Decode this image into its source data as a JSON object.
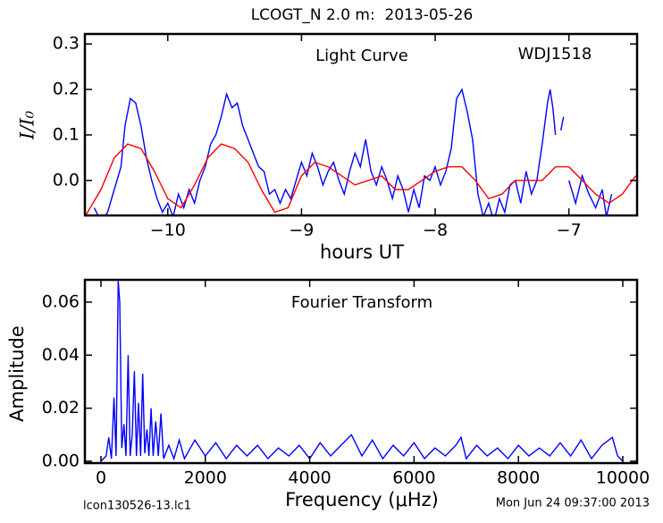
{
  "title": "LCOGT_N 2.0 m:  2013-05-26",
  "footer": {
    "left": "lcon130526-13.lc1",
    "right": "Mon Jun 24 09:37:00 2013"
  },
  "chart_data": [
    {
      "type": "line",
      "title": "Light Curve",
      "annotation": "WDJ1518",
      "x_label": "hours UT",
      "y_label": "I/I₀",
      "xlim": [
        -10.62,
        -6.49
      ],
      "ylim": [
        -0.077,
        0.322
      ],
      "xticks": [
        {
          "value": -10,
          "label": "−10"
        },
        {
          "value": -9,
          "label": "−9"
        },
        {
          "value": -8,
          "label": "−8"
        },
        {
          "value": -7,
          "label": "−7"
        }
      ],
      "yticks": [
        {
          "value": 0,
          "label": "0.0"
        },
        0.1,
        0.2,
        0.3
      ],
      "series": [
        {
          "color": "#0000ff",
          "x": [
            -10.55,
            -10.5,
            -10.45,
            -10.4,
            -10.35,
            -10.32,
            -10.28,
            -10.24,
            -10.2,
            -10.16,
            -10.12,
            -10.08,
            -10.04,
            -10.0,
            -9.96,
            -9.92,
            -9.88,
            -9.84,
            -9.8,
            -9.76,
            -9.72,
            -9.68,
            -9.64,
            -9.6,
            -9.56,
            -9.52,
            -9.48,
            -9.44,
            -9.4,
            -9.36,
            -9.32,
            -9.28,
            -9.24,
            -9.2,
            -9.16,
            -9.12,
            -9.08,
            -9.04,
            -9.0,
            -8.96,
            -8.92,
            -8.88,
            -8.84,
            -8.8,
            -8.76,
            -8.72,
            -8.68,
            -8.64,
            -8.6,
            -8.56,
            -8.52,
            -8.48,
            -8.44,
            -8.4,
            -8.36,
            -8.32,
            -8.28,
            -8.24,
            -8.2,
            -8.16,
            -8.12,
            -8.08,
            -8.04,
            -8.0,
            -7.96,
            -7.92,
            -7.88,
            -7.84,
            -7.8,
            -7.76,
            -7.72,
            -7.68,
            -7.64,
            -7.6,
            -7.56,
            -7.52,
            -7.48,
            -7.44,
            -7.4,
            -7.36,
            -7.32,
            -7.28,
            -7.24,
            -7.2,
            -7.16,
            -7.14,
            -7.12,
            -7.1,
            -7.08,
            -7.06,
            -7.04,
            -7.02,
            -7.0,
            -6.95,
            -6.9,
            -6.85,
            -6.8,
            -6.75,
            -6.72,
            -6.68
          ],
          "values": [
            -0.06,
            -0.09,
            -0.07,
            -0.02,
            0.03,
            0.12,
            0.18,
            0.17,
            0.12,
            0.05,
            0.0,
            -0.04,
            -0.07,
            -0.05,
            -0.08,
            -0.03,
            -0.06,
            -0.02,
            -0.05,
            0.0,
            0.03,
            0.08,
            0.1,
            0.14,
            0.19,
            0.16,
            0.17,
            0.12,
            0.09,
            0.06,
            0.03,
            0.02,
            -0.03,
            -0.02,
            -0.05,
            -0.02,
            -0.04,
            0.0,
            0.04,
            0.01,
            0.06,
            0.03,
            -0.01,
            0.02,
            0.04,
            0.0,
            -0.03,
            0.02,
            0.06,
            0.03,
            0.09,
            0.02,
            -0.01,
            0.03,
            0.0,
            -0.04,
            0.01,
            -0.02,
            -0.07,
            -0.02,
            -0.06,
            0.01,
            0.0,
            0.03,
            -0.01,
            0.02,
            0.07,
            0.18,
            0.2,
            0.15,
            0.09,
            -0.03,
            -0.08,
            -0.05,
            -0.09,
            -0.04,
            -0.07,
            -0.01,
            0.0,
            -0.05,
            0.02,
            -0.03,
            0.0,
            0.08,
            0.17,
            0.2,
            0.16,
            0.1,
            null,
            0.11,
            0.14,
            null,
            0.0,
            -0.05,
            0.01,
            -0.03,
            -0.06,
            -0.02,
            -0.08,
            -0.03
          ]
        },
        {
          "color": "#ff0000",
          "x": [
            -10.62,
            -10.5,
            -10.4,
            -10.3,
            -10.2,
            -10.1,
            -10.0,
            -9.9,
            -9.8,
            -9.7,
            -9.6,
            -9.5,
            -9.4,
            -9.3,
            -9.2,
            -9.1,
            -9.0,
            -8.9,
            -8.8,
            -8.7,
            -8.6,
            -8.5,
            -8.4,
            -8.3,
            -8.2,
            -8.1,
            -8.0,
            -7.9,
            -7.8,
            -7.7,
            -7.6,
            -7.5,
            -7.4,
            -7.3,
            -7.2,
            -7.1,
            -7.0,
            -6.9,
            -6.8,
            -6.7,
            -6.6,
            -6.5
          ],
          "values": [
            -0.08,
            -0.02,
            0.05,
            0.08,
            0.07,
            0.02,
            -0.04,
            -0.06,
            -0.01,
            0.05,
            0.08,
            0.07,
            0.04,
            -0.02,
            -0.07,
            -0.06,
            0.01,
            0.04,
            0.03,
            0.01,
            -0.01,
            0.0,
            0.01,
            -0.02,
            -0.02,
            0.0,
            0.02,
            0.03,
            0.03,
            0.0,
            -0.04,
            -0.03,
            0.0,
            0.0,
            0.0,
            0.03,
            0.03,
            0.0,
            -0.03,
            -0.05,
            -0.03,
            0.01
          ]
        }
      ]
    },
    {
      "type": "line",
      "title": "Fourier Transform",
      "x_label": "Frequency (μHz)",
      "y_label": "Amplitude",
      "xlim": [
        -308,
        10274
      ],
      "ylim": [
        -0.0007,
        0.0684
      ],
      "xticks": [
        0,
        2000,
        4000,
        6000,
        8000,
        10000
      ],
      "yticks": [
        {
          "value": 0,
          "label": "0.00"
        },
        0.02,
        0.04,
        0.06
      ],
      "series": [
        {
          "color": "#0000ff",
          "x": [
            0,
            100,
            150,
            200,
            250,
            290,
            330,
            360,
            400,
            440,
            480,
            520,
            560,
            600,
            640,
            680,
            720,
            760,
            800,
            840,
            880,
            920,
            960,
            1000,
            1050,
            1100,
            1150,
            1200,
            1300,
            1400,
            1500,
            1600,
            1800,
            2000,
            2200,
            2400,
            2600,
            2800,
            3000,
            3200,
            3400,
            3600,
            3800,
            4000,
            4200,
            4400,
            4600,
            4800,
            5000,
            5200,
            5400,
            5600,
            5800,
            6000,
            6200,
            6400,
            6600,
            6800,
            6900,
            7000,
            7200,
            7400,
            7600,
            7800,
            8000,
            8200,
            8400,
            8600,
            8800,
            9000,
            9200,
            9400,
            9600,
            9800,
            9900,
            10000
          ],
          "values": [
            0,
            0.002,
            0.009,
            0.001,
            0.024,
            0.002,
            0.068,
            0.06,
            0.005,
            0.014,
            0.002,
            0.04,
            0.002,
            0.01,
            0.034,
            0.002,
            0.022,
            0.002,
            0.033,
            0.003,
            0.012,
            0.002,
            0.02,
            0.002,
            0.015,
            0.002,
            0.018,
            0.001,
            0.006,
            0.001,
            0.008,
            0.001,
            0.008,
            0.002,
            0.007,
            0.001,
            0.006,
            0.002,
            0.006,
            0.001,
            0.005,
            0.002,
            0.006,
            0.001,
            0.007,
            0.002,
            0.006,
            0.01,
            0.002,
            0.008,
            0.001,
            0.006,
            0.002,
            0.007,
            0.001,
            0.005,
            0.002,
            0.006,
            0.009,
            0.001,
            0.006,
            0.002,
            0.005,
            0.001,
            0.006,
            0.002,
            0.005,
            0.002,
            0.007,
            0.002,
            0.008,
            0.001,
            0.006,
            0.009,
            0.002,
            0
          ]
        }
      ]
    }
  ]
}
